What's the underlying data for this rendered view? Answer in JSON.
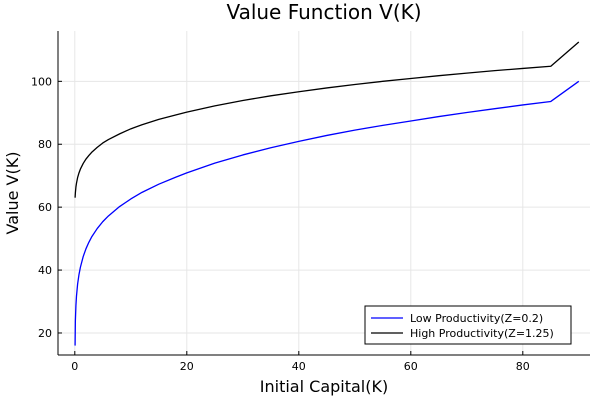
{
  "chart_data": {
    "type": "line",
    "title": "Value Function V(K)",
    "xlabel": "Initial Capital(K)",
    "ylabel": "Value V(K)",
    "xlim": [
      -3,
      92
    ],
    "ylim": [
      13,
      116
    ],
    "xticks": [
      0,
      20,
      40,
      60,
      80
    ],
    "yticks": [
      20,
      40,
      60,
      80,
      100
    ],
    "grid": true,
    "legend_position": "bottom-right",
    "series": [
      {
        "name": "Low Productivity(Z=0.2)",
        "color": "#0000ff",
        "x": [
          0.05,
          0.1,
          0.2,
          0.3,
          0.5,
          0.75,
          1,
          1.5,
          2,
          2.5,
          3,
          4,
          5,
          6,
          8,
          10,
          12,
          15,
          18,
          20,
          25,
          30,
          35,
          40,
          45,
          50,
          55,
          60,
          65,
          70,
          75,
          80,
          85,
          90
        ],
        "y": [
          16.0,
          23.8,
          28.7,
          31.7,
          35.5,
          38.6,
          40.9,
          44.3,
          46.8,
          48.8,
          50.5,
          53.2,
          55.4,
          57.2,
          60.2,
          62.6,
          64.7,
          67.3,
          69.5,
          70.9,
          74.0,
          76.6,
          78.9,
          80.9,
          82.8,
          84.5,
          86.0,
          87.4,
          88.8,
          90.1,
          91.3,
          92.5,
          93.6,
          100.0
        ]
      },
      {
        "name": "High Productivity(Z=1.25)",
        "color": "#000000",
        "x": [
          0.05,
          0.1,
          0.2,
          0.3,
          0.5,
          0.75,
          1,
          1.5,
          2,
          2.5,
          3,
          4,
          5,
          6,
          8,
          10,
          12,
          15,
          18,
          20,
          25,
          30,
          35,
          40,
          45,
          50,
          55,
          60,
          65,
          70,
          75,
          80,
          85,
          90
        ],
        "y": [
          63.0,
          64.5,
          66.4,
          67.6,
          69.4,
          70.9,
          72.1,
          73.9,
          75.3,
          76.4,
          77.4,
          79.0,
          80.4,
          81.5,
          83.3,
          84.9,
          86.2,
          87.9,
          89.3,
          90.2,
          92.2,
          93.9,
          95.4,
          96.7,
          97.9,
          99.0,
          100.0,
          100.9,
          101.8,
          102.6,
          103.4,
          104.1,
          104.8,
          112.5
        ]
      }
    ]
  }
}
